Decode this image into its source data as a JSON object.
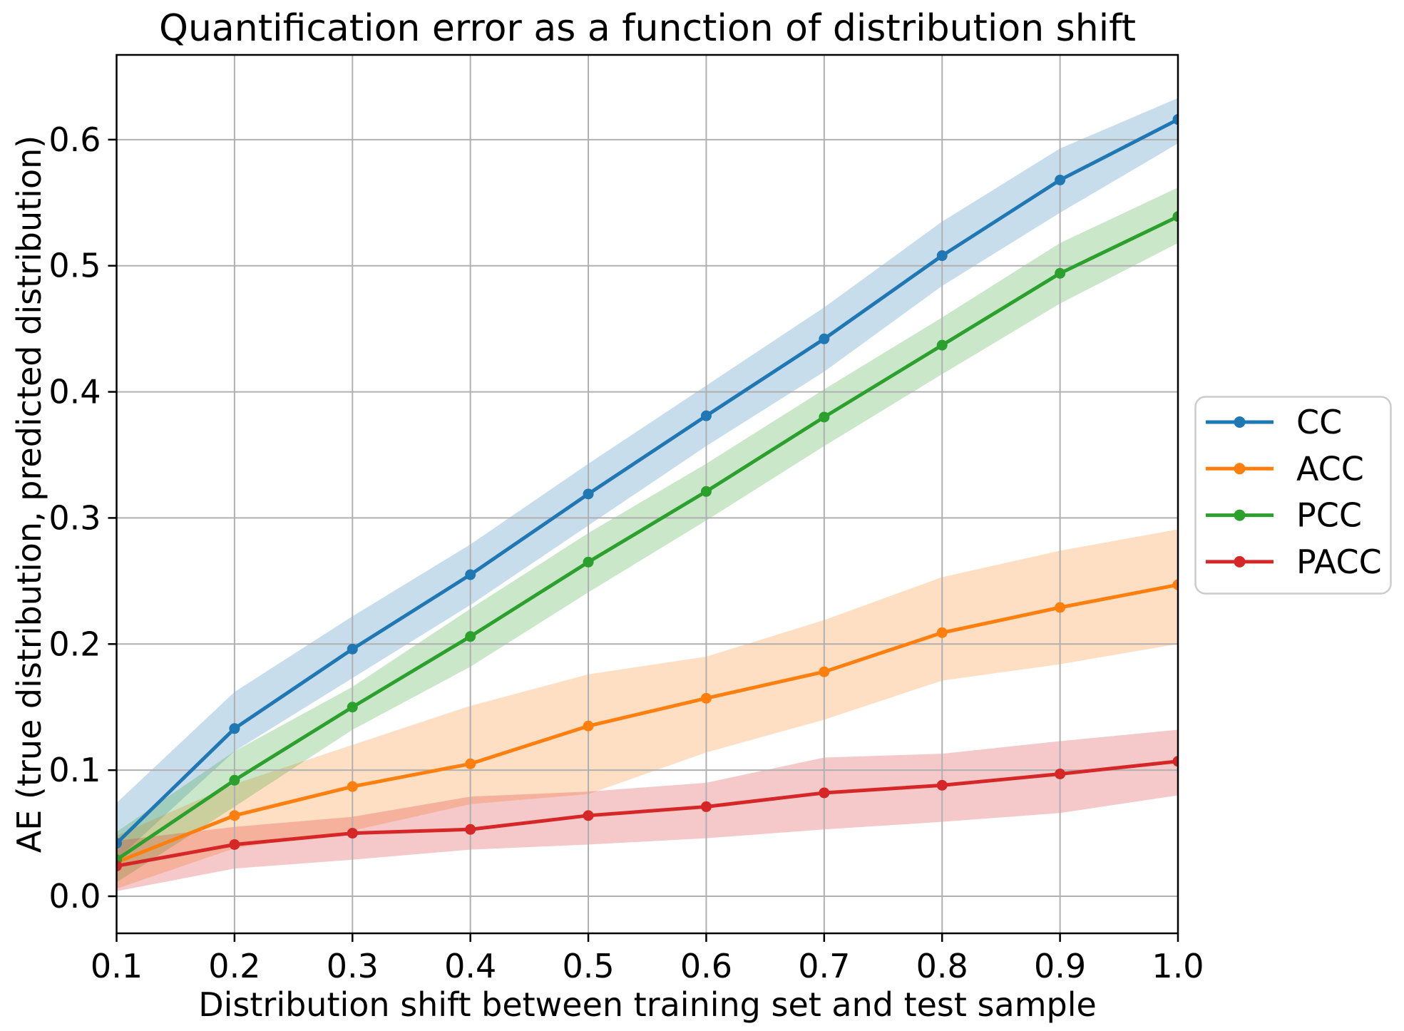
{
  "figure": {
    "background": "#ffffff",
    "grid_color": "#b0b0b0",
    "spine_color": "#000000",
    "legend_border_color": "#cccccc"
  },
  "chart_data": {
    "type": "line",
    "title": "Quantification error as a function of distribution shift",
    "xlabel": "Distribution shift between training set and test sample",
    "ylabel": "AE (true distribution, predicted distribution)",
    "x": [
      0.1,
      0.2,
      0.3,
      0.4,
      0.5,
      0.6,
      0.7,
      0.8,
      0.9,
      1.0
    ],
    "xlim": [
      0.1,
      1.0
    ],
    "ylim": [
      -0.0294,
      0.6672
    ],
    "xticks": [
      0.1,
      0.2,
      0.3,
      0.4,
      0.5,
      0.6,
      0.7,
      0.8,
      0.9,
      1.0
    ],
    "xtick_labels": [
      "0.1",
      "0.2",
      "0.3",
      "0.4",
      "0.5",
      "0.6",
      "0.7",
      "0.8",
      "0.9",
      "1.0"
    ],
    "yticks": [
      0.0,
      0.1,
      0.2,
      0.3,
      0.4,
      0.5,
      0.6
    ],
    "ytick_labels": [
      "0.0",
      "0.1",
      "0.2",
      "0.3",
      "0.4",
      "0.5",
      "0.6"
    ],
    "grid": true,
    "legend_position": "outside-right",
    "band_opacity": 0.25,
    "series": [
      {
        "name": "CC",
        "color": "#1f77b4",
        "values": [
          0.042,
          0.133,
          0.196,
          0.255,
          0.319,
          0.381,
          0.442,
          0.508,
          0.568,
          0.616
        ],
        "band_lower": [
          0.029,
          0.115,
          0.173,
          0.231,
          0.294,
          0.357,
          0.416,
          0.484,
          0.542,
          0.597
        ],
        "band_upper": [
          0.074,
          0.162,
          0.222,
          0.279,
          0.343,
          0.405,
          0.467,
          0.535,
          0.593,
          0.633
        ]
      },
      {
        "name": "ACC",
        "color": "#ff7f0e",
        "values": [
          0.027,
          0.064,
          0.087,
          0.105,
          0.135,
          0.157,
          0.178,
          0.209,
          0.229,
          0.247
        ],
        "band_lower": [
          0.006,
          0.038,
          0.052,
          0.073,
          0.081,
          0.114,
          0.14,
          0.171,
          0.184,
          0.2
        ],
        "band_upper": [
          0.048,
          0.089,
          0.12,
          0.151,
          0.176,
          0.19,
          0.219,
          0.253,
          0.274,
          0.291
        ]
      },
      {
        "name": "PCC",
        "color": "#2ca02c",
        "values": [
          0.029,
          0.092,
          0.15,
          0.206,
          0.265,
          0.321,
          0.38,
          0.437,
          0.494,
          0.539
        ],
        "band_lower": [
          0.011,
          0.071,
          0.132,
          0.182,
          0.241,
          0.298,
          0.357,
          0.414,
          0.47,
          0.518
        ],
        "band_upper": [
          0.051,
          0.115,
          0.166,
          0.228,
          0.288,
          0.343,
          0.402,
          0.459,
          0.518,
          0.562
        ]
      },
      {
        "name": "PACC",
        "color": "#d62728",
        "values": [
          0.024,
          0.041,
          0.05,
          0.053,
          0.064,
          0.071,
          0.082,
          0.088,
          0.097,
          0.107
        ],
        "band_lower": [
          0.004,
          0.022,
          0.029,
          0.037,
          0.041,
          0.046,
          0.053,
          0.059,
          0.066,
          0.08
        ],
        "band_upper": [
          0.044,
          0.055,
          0.063,
          0.079,
          0.083,
          0.09,
          0.11,
          0.113,
          0.123,
          0.132
        ]
      }
    ]
  }
}
